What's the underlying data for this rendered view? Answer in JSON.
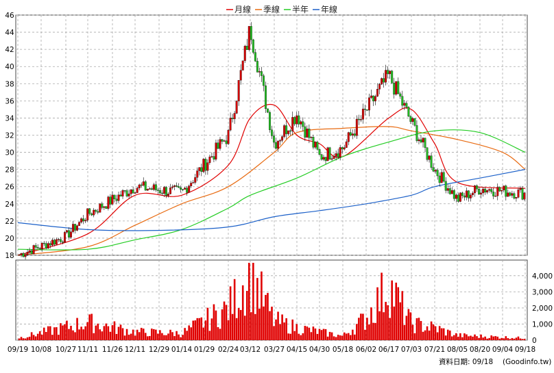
{
  "chart_data": [
    {
      "type": "candlestick",
      "legend": {
        "placement": "top-center",
        "items": [
          {
            "name": "月線",
            "color": "#e00000"
          },
          {
            "name": "季線",
            "color": "#e86a10"
          },
          {
            "name": "半年",
            "color": "#22cc22"
          },
          {
            "name": "年線",
            "color": "#1a5fc8"
          }
        ]
      },
      "ylim": [
        18,
        46
      ],
      "yticks": [
        "46",
        "44",
        "42",
        "40",
        "38",
        "36",
        "34",
        "32",
        "30",
        "28",
        "26",
        "24",
        "22",
        "20",
        "18"
      ],
      "grid": true,
      "colors": {
        "up": "#d40000",
        "down": "#22bb22"
      },
      "key_points": [
        {
          "x": "09/19",
          "close": 18.0
        },
        {
          "x": "10/27",
          "close": 20.2
        },
        {
          "x": "11/11",
          "close": 22.8
        },
        {
          "x": "12/11",
          "close": 26.0
        },
        {
          "x": "01/14",
          "close": 25.3
        },
        {
          "x": "02/24",
          "close": 32.0
        },
        {
          "x": "03/12",
          "close": 44.5
        },
        {
          "x": "03/27",
          "close": 31.0
        },
        {
          "x": "04/15",
          "close": 34.5
        },
        {
          "x": "04/30",
          "close": 29.5
        },
        {
          "x": "05/18",
          "close": 30.5
        },
        {
          "x": "06/17",
          "close": 39.0
        },
        {
          "x": "07/03",
          "close": 33.5
        },
        {
          "x": "07/21",
          "close": 28.0
        },
        {
          "x": "08/05",
          "close": 24.5
        },
        {
          "x": "08/20",
          "close": 25.8
        },
        {
          "x": "09/18",
          "close": 25.2
        }
      ],
      "moving_averages": {
        "月線": [
          {
            "x": "09/19",
            "y": 18.0
          },
          {
            "x": "11/11",
            "y": 20.5
          },
          {
            "x": "12/11",
            "y": 25.0
          },
          {
            "x": "01/14",
            "y": 25.0
          },
          {
            "x": "02/24",
            "y": 28.5
          },
          {
            "x": "03/12",
            "y": 34.0
          },
          {
            "x": "03/27",
            "y": 35.5
          },
          {
            "x": "04/15",
            "y": 32.0
          },
          {
            "x": "04/30",
            "y": 31.0
          },
          {
            "x": "05/18",
            "y": 29.5
          },
          {
            "x": "06/17",
            "y": 34.0
          },
          {
            "x": "07/03",
            "y": 35.0
          },
          {
            "x": "07/21",
            "y": 31.0
          },
          {
            "x": "08/05",
            "y": 26.5
          },
          {
            "x": "09/18",
            "y": 25.8
          }
        ],
        "季線": [
          {
            "x": "09/19",
            "y": 18.0
          },
          {
            "x": "11/11",
            "y": 19.0
          },
          {
            "x": "12/11",
            "y": 21.5
          },
          {
            "x": "01/14",
            "y": 24.0
          },
          {
            "x": "02/24",
            "y": 26.0
          },
          {
            "x": "03/27",
            "y": 30.0
          },
          {
            "x": "04/15",
            "y": 32.3
          },
          {
            "x": "05/18",
            "y": 32.8
          },
          {
            "x": "06/17",
            "y": 33.0
          },
          {
            "x": "07/03",
            "y": 32.5
          },
          {
            "x": "08/05",
            "y": 31.5
          },
          {
            "x": "09/04",
            "y": 30.0
          },
          {
            "x": "09/18",
            "y": 28.0
          }
        ],
        "半年": [
          {
            "x": "09/19",
            "y": 18.7
          },
          {
            "x": "11/11",
            "y": 18.7
          },
          {
            "x": "12/11",
            "y": 19.8
          },
          {
            "x": "01/14",
            "y": 21.0
          },
          {
            "x": "02/24",
            "y": 23.5
          },
          {
            "x": "03/12",
            "y": 25.0
          },
          {
            "x": "04/15",
            "y": 27.0
          },
          {
            "x": "05/18",
            "y": 29.5
          },
          {
            "x": "06/17",
            "y": 31.2
          },
          {
            "x": "07/21",
            "y": 32.5
          },
          {
            "x": "08/20",
            "y": 32.3
          },
          {
            "x": "09/18",
            "y": 30.0
          }
        ],
        "年線": [
          {
            "x": "09/19",
            "y": 21.8
          },
          {
            "x": "11/11",
            "y": 21.0
          },
          {
            "x": "12/29",
            "y": 20.9
          },
          {
            "x": "02/24",
            "y": 21.3
          },
          {
            "x": "03/27",
            "y": 22.5
          },
          {
            "x": "04/30",
            "y": 23.2
          },
          {
            "x": "06/02",
            "y": 24.0
          },
          {
            "x": "07/03",
            "y": 25.0
          },
          {
            "x": "07/21",
            "y": 26.0
          },
          {
            "x": "08/20",
            "y": 27.0
          },
          {
            "x": "09/18",
            "y": 28.0
          }
        ]
      }
    },
    {
      "type": "bar",
      "series": [
        {
          "name": "",
          "color": "#e00000"
        }
      ],
      "ylim": [
        0,
        4800
      ],
      "yticks": [
        "4,000",
        "3,000",
        "2,000",
        "1,000",
        "0"
      ],
      "grid": true,
      "key_points": [
        {
          "x": "09/19",
          "y": 150
        },
        {
          "x": "11/11",
          "y": 1300
        },
        {
          "x": "12/11",
          "y": 600
        },
        {
          "x": "01/14",
          "y": 500
        },
        {
          "x": "02/24",
          "y": 2300
        },
        {
          "x": "03/12",
          "y": 4800
        },
        {
          "x": "03/27",
          "y": 1400
        },
        {
          "x": "04/15",
          "y": 900
        },
        {
          "x": "05/18",
          "y": 300
        },
        {
          "x": "06/02",
          "y": 1600
        },
        {
          "x": "06/17",
          "y": 4000
        },
        {
          "x": "07/03",
          "y": 1200
        },
        {
          "x": "07/21",
          "y": 900
        },
        {
          "x": "08/05",
          "y": 350
        },
        {
          "x": "09/18",
          "y": 150
        }
      ]
    }
  ],
  "xticks": [
    "09/19",
    "10/08",
    "10/27",
    "11/11",
    "11/26",
    "12/11",
    "12/29",
    "01/14",
    "01/29",
    "02/24",
    "03/12",
    "03/27",
    "04/15",
    "04/30",
    "05/18",
    "06/02",
    "06/17",
    "07/03",
    "07/21",
    "08/05",
    "08/20",
    "09/04",
    "09/18"
  ],
  "footer": {
    "label": "資料日期: 09/18",
    "source": "(Goodinfo.tw)"
  }
}
